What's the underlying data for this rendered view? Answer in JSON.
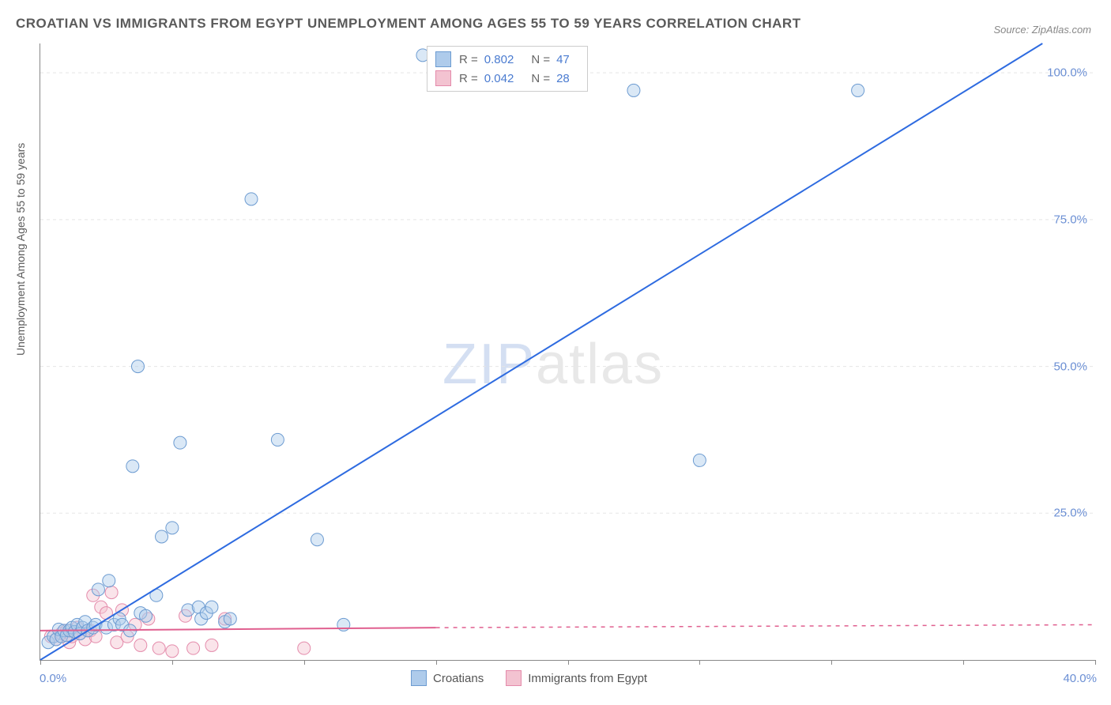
{
  "title": "CROATIAN VS IMMIGRANTS FROM EGYPT UNEMPLOYMENT AMONG AGES 55 TO 59 YEARS CORRELATION CHART",
  "source": "Source: ZipAtlas.com",
  "ylabel": "Unemployment Among Ages 55 to 59 years",
  "watermark_a": "ZIP",
  "watermark_b": "atlas",
  "chart": {
    "type": "scatter",
    "xlim": [
      0,
      40
    ],
    "ylim": [
      0,
      105
    ],
    "ytick_step": 25,
    "ytick_labels": [
      "25.0%",
      "50.0%",
      "75.0%",
      "100.0%"
    ],
    "x_origin_label": "0.0%",
    "x_max_label": "40.0%",
    "xtick_positions": [
      0,
      5,
      10,
      15,
      20,
      25,
      30,
      35,
      40
    ],
    "background_color": "#ffffff",
    "grid_color": "#e5e5e5",
    "marker_radius": 8,
    "marker_opacity": 0.45,
    "series": [
      {
        "name": "Croatians",
        "color_fill": "#aecbeb",
        "color_stroke": "#6c9bd1",
        "line_color": "#2e6be0",
        "line_width": 2,
        "R": "0.802",
        "N": "47",
        "reg_line": {
          "x1": 0,
          "y1": 0,
          "x2": 38,
          "y2": 105
        },
        "points": [
          [
            0.3,
            3.0
          ],
          [
            0.5,
            4.0
          ],
          [
            0.6,
            3.5
          ],
          [
            0.7,
            5.2
          ],
          [
            0.8,
            4.0
          ],
          [
            0.9,
            5.0
          ],
          [
            1.0,
            4.2
          ],
          [
            1.1,
            5.0
          ],
          [
            1.2,
            5.5
          ],
          [
            1.3,
            4.8
          ],
          [
            1.4,
            6.0
          ],
          [
            1.5,
            4.5
          ],
          [
            1.6,
            5.5
          ],
          [
            1.7,
            6.5
          ],
          [
            1.8,
            5.0
          ],
          [
            2.0,
            5.5
          ],
          [
            2.1,
            6.0
          ],
          [
            2.2,
            12.0
          ],
          [
            2.5,
            5.5
          ],
          [
            2.6,
            13.5
          ],
          [
            2.8,
            6.0
          ],
          [
            3.0,
            7.0
          ],
          [
            3.1,
            6.0
          ],
          [
            3.4,
            5.0
          ],
          [
            3.5,
            33.0
          ],
          [
            3.7,
            50.0
          ],
          [
            3.8,
            8.0
          ],
          [
            4.0,
            7.5
          ],
          [
            4.4,
            11.0
          ],
          [
            4.6,
            21.0
          ],
          [
            5.0,
            22.5
          ],
          [
            5.3,
            37.0
          ],
          [
            5.6,
            8.5
          ],
          [
            6.0,
            9.0
          ],
          [
            6.1,
            7.0
          ],
          [
            6.3,
            8.0
          ],
          [
            6.5,
            9.0
          ],
          [
            7.0,
            6.5
          ],
          [
            7.2,
            7.0
          ],
          [
            8.0,
            78.5
          ],
          [
            9.0,
            37.5
          ],
          [
            10.5,
            20.5
          ],
          [
            14.5,
            103.0
          ],
          [
            22.5,
            97.0
          ],
          [
            25.0,
            34.0
          ],
          [
            31.0,
            97.0
          ],
          [
            11.5,
            6.0
          ]
        ]
      },
      {
        "name": "Immigrants from Egypt",
        "color_fill": "#f3c3d1",
        "color_stroke": "#e48bab",
        "line_color": "#e05f8f",
        "line_width": 2,
        "R": "0.042",
        "N": "28",
        "reg_line_solid": {
          "x1": 0,
          "y1": 5.0,
          "x2": 15,
          "y2": 5.5
        },
        "reg_line_dashed": {
          "x1": 15,
          "y1": 5.5,
          "x2": 40,
          "y2": 6.0
        },
        "points": [
          [
            0.4,
            4.0
          ],
          [
            0.6,
            3.5
          ],
          [
            0.8,
            4.5
          ],
          [
            1.0,
            5.0
          ],
          [
            1.1,
            3.0
          ],
          [
            1.2,
            4.0
          ],
          [
            1.4,
            5.5
          ],
          [
            1.5,
            4.5
          ],
          [
            1.7,
            3.5
          ],
          [
            1.9,
            5.0
          ],
          [
            2.0,
            11.0
          ],
          [
            2.1,
            4.0
          ],
          [
            2.3,
            9.0
          ],
          [
            2.5,
            8.0
          ],
          [
            2.7,
            11.5
          ],
          [
            2.9,
            3.0
          ],
          [
            3.1,
            8.5
          ],
          [
            3.3,
            4.0
          ],
          [
            3.6,
            6.0
          ],
          [
            3.8,
            2.5
          ],
          [
            4.1,
            7.0
          ],
          [
            4.5,
            2.0
          ],
          [
            5.0,
            1.5
          ],
          [
            5.5,
            7.5
          ],
          [
            5.8,
            2.0
          ],
          [
            6.5,
            2.5
          ],
          [
            7.0,
            7.0
          ],
          [
            10.0,
            2.0
          ]
        ]
      }
    ]
  },
  "legend_top": {
    "r_label": "R =",
    "n_label": "N ="
  },
  "legend_bottom": {
    "s1": "Croatians",
    "s2": "Immigrants from Egypt"
  }
}
